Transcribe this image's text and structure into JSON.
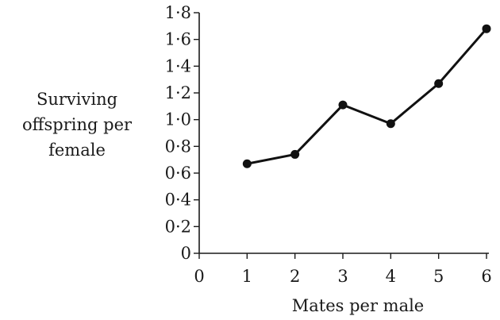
{
  "chart_data": {
    "type": "line",
    "title": "",
    "xlabel": "Mates per male",
    "ylabel": [
      "Surviving",
      "offspring per",
      "female"
    ],
    "x": [
      1,
      2,
      3,
      4,
      5,
      6
    ],
    "series": [
      {
        "values": [
          0.67,
          0.74,
          1.11,
          0.97,
          1.27,
          1.68
        ]
      }
    ],
    "xlim": [
      0,
      6
    ],
    "ylim": [
      0,
      1.8
    ],
    "x_ticks": [
      "0",
      "1",
      "2",
      "3",
      "4",
      "5",
      "6"
    ],
    "y_ticks": [
      "0",
      "0·2",
      "0·4",
      "0·6",
      "0·8",
      "1·0",
      "1·2",
      "1·4",
      "1·6",
      "1·8"
    ],
    "grid": false,
    "legend": "none",
    "line_color": "#111111"
  }
}
